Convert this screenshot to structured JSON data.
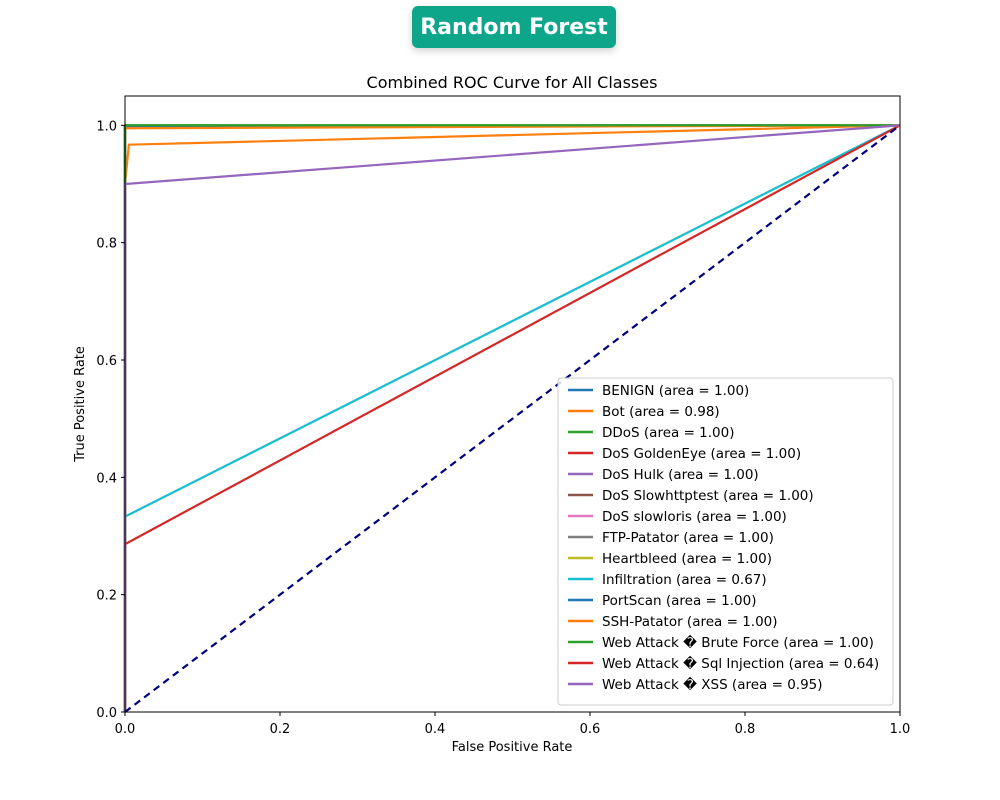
{
  "badge": {
    "label": "Random Forest",
    "color": "#0ea68a"
  },
  "chart_data": {
    "type": "line",
    "title": "Combined ROC Curve for All Classes",
    "xlabel": "False Positive Rate",
    "ylabel": "True Positive Rate",
    "xlim": [
      0.0,
      1.0
    ],
    "ylim": [
      0.0,
      1.05
    ],
    "xticks": [
      "0.0",
      "0.2",
      "0.4",
      "0.6",
      "0.8",
      "1.0"
    ],
    "yticks": [
      "0.0",
      "0.2",
      "0.4",
      "0.6",
      "0.8",
      "1.0"
    ],
    "grid": false,
    "legend_position": "lower-right",
    "diagonal": {
      "x": [
        0,
        1
      ],
      "y": [
        0,
        1
      ],
      "color": "#000080",
      "style": "dashed"
    },
    "series": [
      {
        "name": "BENIGN (area = 1.00)",
        "color": "#1f77b4",
        "x": [
          0,
          0,
          1
        ],
        "y": [
          0,
          1,
          1
        ]
      },
      {
        "name": "Bot (area = 0.98)",
        "color": "#ff7f0e",
        "x": [
          0,
          0,
          0.005,
          1
        ],
        "y": [
          0,
          0.9,
          0.967,
          1
        ]
      },
      {
        "name": "DDoS (area = 1.00)",
        "color": "#2ca02c",
        "x": [
          0,
          0,
          1
        ],
        "y": [
          0,
          1,
          1
        ]
      },
      {
        "name": "DoS GoldenEye (area = 1.00)",
        "color": "#d62728",
        "x": [
          0,
          0,
          1
        ],
        "y": [
          0,
          0.999,
          1
        ]
      },
      {
        "name": "DoS Hulk (area = 1.00)",
        "color": "#9467bd",
        "x": [
          0,
          0,
          1
        ],
        "y": [
          0,
          0.999,
          1
        ]
      },
      {
        "name": "DoS Slowhttptest (area = 1.00)",
        "color": "#8c564b",
        "x": [
          0,
          0,
          1
        ],
        "y": [
          0,
          0.998,
          1
        ]
      },
      {
        "name": "DoS slowloris (area = 1.00)",
        "color": "#e377c2",
        "x": [
          0,
          0,
          1
        ],
        "y": [
          0,
          0.998,
          1
        ]
      },
      {
        "name": "FTP-Patator (area = 1.00)",
        "color": "#7f7f7f",
        "x": [
          0,
          0,
          1
        ],
        "y": [
          0,
          0.999,
          1
        ]
      },
      {
        "name": "Heartbleed (area = 1.00)",
        "color": "#bcbd22",
        "x": [
          0,
          0,
          1
        ],
        "y": [
          0,
          1,
          1
        ]
      },
      {
        "name": "Infiltration (area = 0.67)",
        "color": "#17becf",
        "x": [
          0,
          0,
          1
        ],
        "y": [
          0,
          0.333,
          1
        ]
      },
      {
        "name": "PortScan (area = 1.00)",
        "color": "#1f77b4",
        "x": [
          0,
          0,
          1
        ],
        "y": [
          0,
          0.999,
          1
        ]
      },
      {
        "name": "SSH-Patator (area = 1.00)",
        "color": "#ff7f0e",
        "x": [
          0,
          0,
          1
        ],
        "y": [
          0,
          0.995,
          1
        ]
      },
      {
        "name": "Web Attack � Brute Force (area = 1.00)",
        "color": "#2ca02c",
        "x": [
          0,
          0,
          1
        ],
        "y": [
          0,
          1,
          1
        ]
      },
      {
        "name": "Web Attack � Sql Injection (area = 0.64)",
        "color": "#d62728",
        "x": [
          0,
          0,
          1
        ],
        "y": [
          0,
          0.286,
          1
        ]
      },
      {
        "name": "Web Attack � XSS (area = 0.95)",
        "color": "#9467bd",
        "x": [
          0,
          0,
          1
        ],
        "y": [
          0,
          0.9,
          1
        ]
      }
    ]
  }
}
